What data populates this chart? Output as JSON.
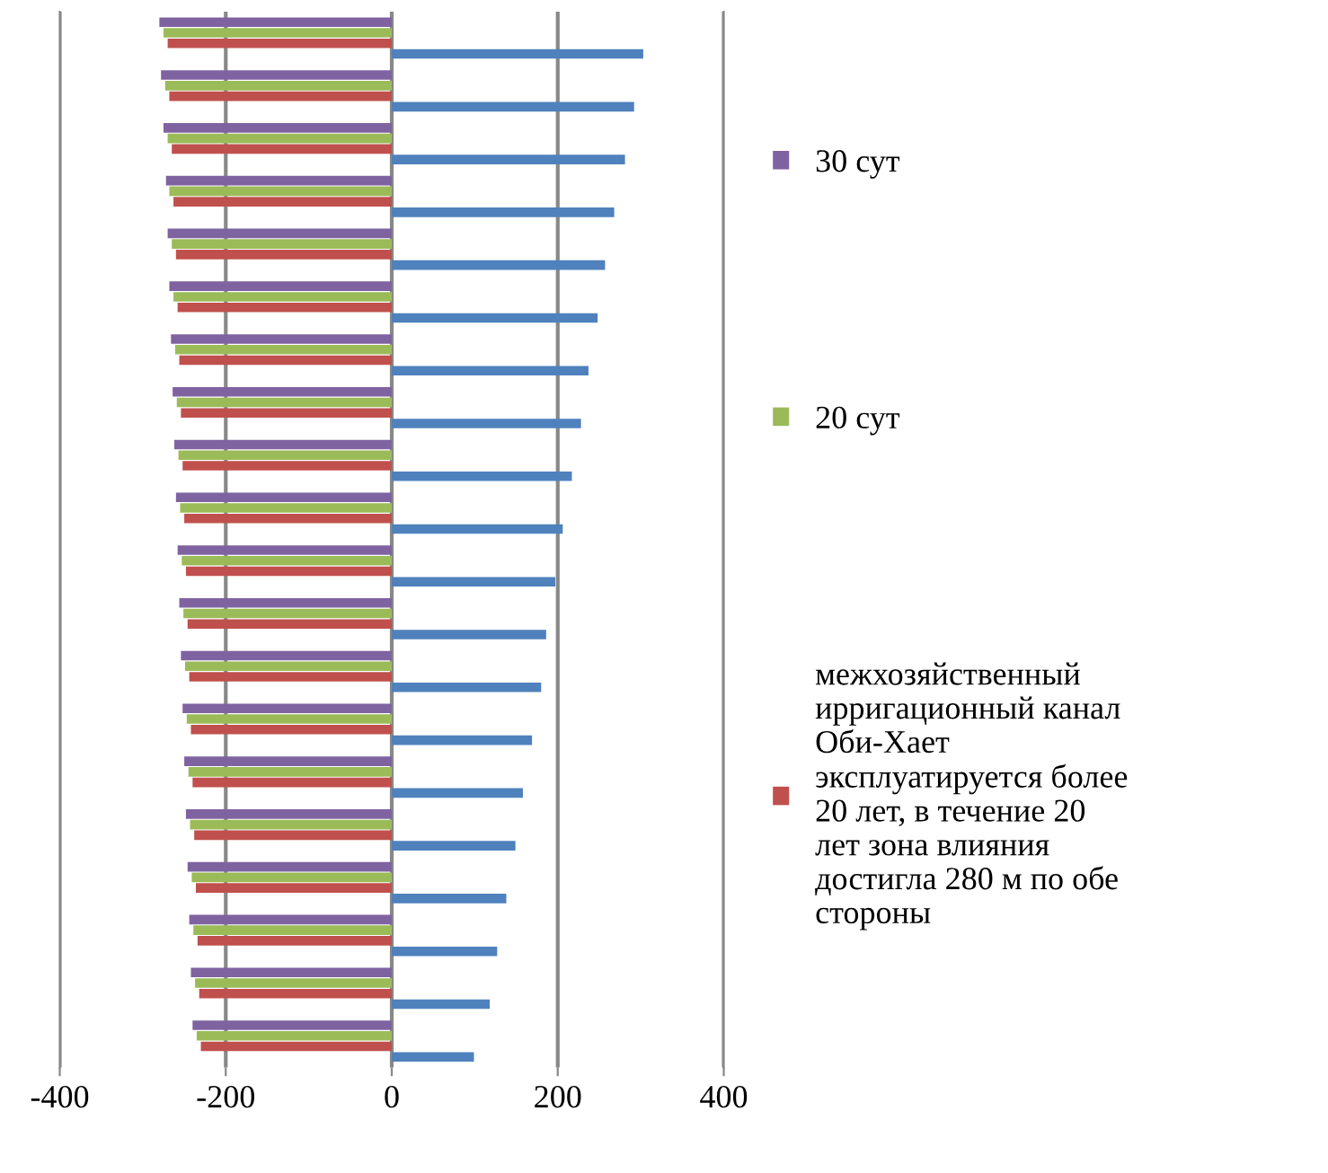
{
  "chart_data": {
    "type": "bar",
    "orientation": "horizontal",
    "categories": [
      null,
      null,
      null,
      null,
      null,
      null,
      null,
      null,
      null,
      null,
      null,
      null,
      null,
      null,
      null,
      null,
      null,
      null,
      null,
      null
    ],
    "series": [
      {
        "name": "30 сут",
        "color": "#7f63a1",
        "values": [
          -280,
          -278,
          -275,
          -272,
          -270,
          -268,
          -266,
          -264,
          -262,
          -260,
          -258,
          -256,
          -254,
          -252,
          -250,
          -248,
          -246,
          -244,
          -242,
          -240
        ]
      },
      {
        "name": "20 сут",
        "color": "#9bbb59",
        "values": [
          -275,
          -273,
          -270,
          -268,
          -265,
          -263,
          -261,
          -259,
          -257,
          -255,
          -253,
          -251,
          -249,
          -247,
          -245,
          -243,
          -241,
          -239,
          -237,
          -235
        ]
      },
      {
        "name": "межхозяйственный ирригационный канал Оби-Хает эксплуатируется более 20 лет, в течение 20 лет зона влияния достигла 280 м по обе стороны",
        "color": "#c0504d",
        "values": [
          -270,
          -268,
          -265,
          -263,
          -260,
          -258,
          -256,
          -254,
          -252,
          -250,
          -248,
          -246,
          -244,
          -242,
          -240,
          -238,
          -236,
          -234,
          -232,
          -230
        ]
      },
      {
        "color": "#4f81bd",
        "values": [
          303,
          292,
          281,
          268,
          257,
          248,
          237,
          228,
          217,
          206,
          197,
          186,
          180,
          169,
          158,
          149,
          138,
          127,
          118,
          99
        ]
      }
    ],
    "xlim": [
      -400,
      400
    ],
    "xticks": [
      -400,
      -200,
      0,
      200,
      400
    ],
    "grid": "x",
    "legend": "right"
  }
}
